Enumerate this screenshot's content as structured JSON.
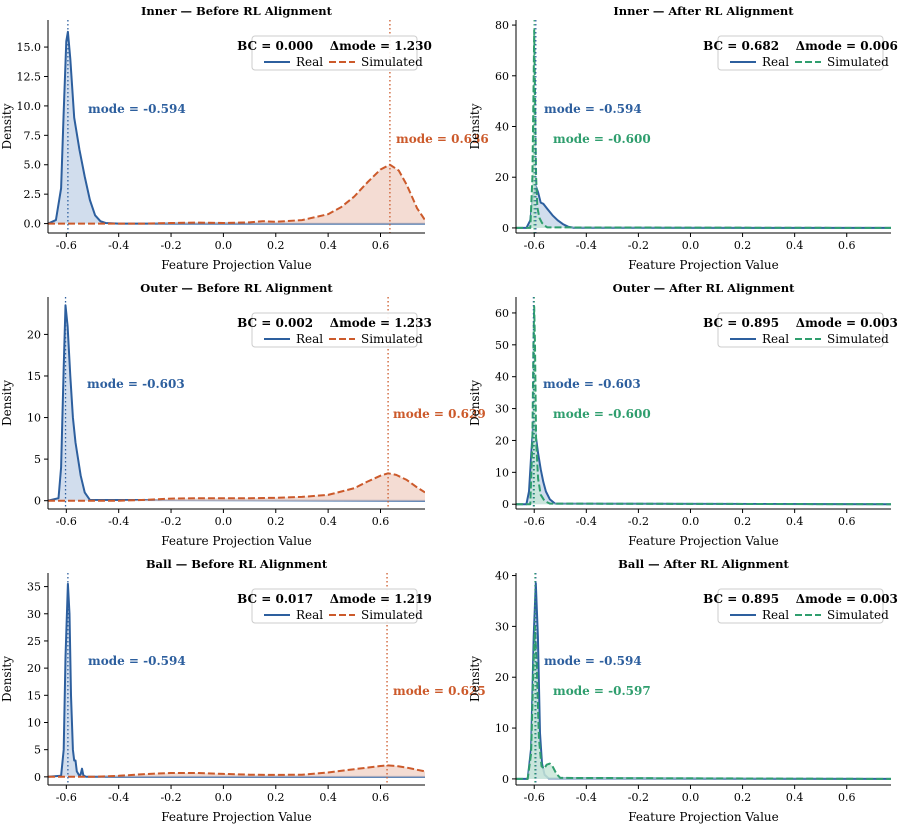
{
  "colors": {
    "real": "#2d5f9e",
    "real_fill": "#c9d7ea",
    "sim_before": "#cc5a2b",
    "sim_before_fill": "#f2d6cb",
    "sim_after": "#2f9e6e",
    "sim_after_fill": "#c8e6d8",
    "axis": "#000000"
  },
  "chart_data": [
    {
      "type": "area",
      "title": "Inner — Before RL Alignment",
      "xlabel": "Feature Projection Value",
      "ylabel": "Density",
      "xlim": [
        -0.67,
        0.77
      ],
      "ylim": [
        -0.8,
        17.3
      ],
      "yticks": [
        0.0,
        2.5,
        5.0,
        7.5,
        10.0,
        12.5,
        15.0
      ],
      "ytick_labels": [
        "0.0",
        "2.5",
        "5.0",
        "7.5",
        "10.0",
        "12.5",
        "15.0"
      ],
      "xticks": [
        -0.6,
        -0.4,
        -0.2,
        0.0,
        0.2,
        0.4,
        0.6
      ],
      "xtick_labels": [
        "-0.6",
        "-0.4",
        "-0.2",
        "0.0",
        "0.2",
        "0.4",
        "0.6"
      ],
      "legend": {
        "stats": "BC = 0.000    Δmode = 1.230",
        "labels": [
          "Real",
          "Simulated"
        ],
        "position": "top-right"
      },
      "modes": {
        "real": -0.594,
        "sim": 0.636,
        "real_label": "mode = -0.594",
        "sim_label": "mode = 0.636",
        "sim_style": "before"
      },
      "series": [
        {
          "name": "Real",
          "x": [
            -0.67,
            -0.64,
            -0.62,
            -0.61,
            -0.6,
            -0.594,
            -0.585,
            -0.57,
            -0.55,
            -0.53,
            -0.51,
            -0.49,
            -0.47,
            -0.45,
            -0.4,
            0.77
          ],
          "y": [
            0,
            0.3,
            3.0,
            9.5,
            15.5,
            16.3,
            14.0,
            9.0,
            6.3,
            4.0,
            2.0,
            0.7,
            0.2,
            0.05,
            0,
            0
          ]
        },
        {
          "name": "Simulated",
          "x": [
            -0.67,
            -0.3,
            -0.2,
            -0.1,
            0.0,
            0.1,
            0.15,
            0.2,
            0.3,
            0.4,
            0.45,
            0.5,
            0.55,
            0.6,
            0.636,
            0.67,
            0.7,
            0.72,
            0.74,
            0.77
          ],
          "y": [
            0,
            0,
            0.05,
            0.08,
            0.05,
            0.1,
            0.2,
            0.15,
            0.3,
            0.8,
            1.4,
            2.3,
            3.5,
            4.6,
            5.0,
            4.5,
            3.3,
            2.3,
            1.3,
            0.3
          ]
        }
      ]
    },
    {
      "type": "area",
      "title": "Inner — After RL Alignment",
      "xlabel": "Feature Projection Value",
      "ylabel": "Density",
      "xlim": [
        -0.67,
        0.77
      ],
      "ylim": [
        -2,
        82
      ],
      "yticks": [
        0,
        20,
        40,
        60,
        80
      ],
      "ytick_labels": [
        "0",
        "20",
        "40",
        "60",
        "80"
      ],
      "xticks": [
        -0.6,
        -0.4,
        -0.2,
        0.0,
        0.2,
        0.4,
        0.6
      ],
      "xtick_labels": [
        "-0.6",
        "-0.4",
        "-0.2",
        "0.0",
        "0.2",
        "0.4",
        "0.6"
      ],
      "legend": {
        "stats": "BC = 0.682    Δmode = 0.006",
        "labels": [
          "Real",
          "Simulated"
        ],
        "position": "top-right"
      },
      "modes": {
        "real": -0.594,
        "sim": -0.6,
        "real_label": "mode = -0.594",
        "sim_label": "mode = -0.600",
        "sim_style": "after"
      },
      "series": [
        {
          "name": "Real",
          "x": [
            -0.67,
            -0.63,
            -0.615,
            -0.605,
            -0.594,
            -0.585,
            -0.575,
            -0.565,
            -0.55,
            -0.53,
            -0.51,
            -0.49,
            -0.47,
            -0.45,
            0.77
          ],
          "y": [
            0,
            0,
            3,
            12,
            16.5,
            14,
            10,
            9.5,
            7.5,
            5,
            3,
            1.5,
            0.5,
            0.1,
            0
          ]
        },
        {
          "name": "Simulated",
          "x": [
            -0.67,
            -0.615,
            -0.607,
            -0.602,
            -0.6,
            -0.598,
            -0.593,
            -0.588,
            -0.58,
            -0.57,
            -0.56,
            -0.55,
            0.77
          ],
          "y": [
            0,
            0,
            20,
            60,
            78,
            60,
            20,
            8,
            4,
            2,
            1,
            0.2,
            0
          ]
        }
      ]
    },
    {
      "type": "area",
      "title": "Outer — Before RL Alignment",
      "xlabel": "Feature Projection Value",
      "ylabel": "Density",
      "xlim": [
        -0.67,
        0.77
      ],
      "ylim": [
        -1.0,
        24.5
      ],
      "yticks": [
        0,
        5,
        10,
        15,
        20
      ],
      "ytick_labels": [
        "0",
        "5",
        "10",
        "15",
        "20"
      ],
      "xticks": [
        -0.6,
        -0.4,
        -0.2,
        0.0,
        0.2,
        0.4,
        0.6
      ],
      "xtick_labels": [
        "-0.6",
        "-0.4",
        "-0.2",
        "0.0",
        "0.2",
        "0.4",
        "0.6"
      ],
      "legend": {
        "stats": "BC = 0.002    Δmode = 1.233",
        "labels": [
          "Real",
          "Simulated"
        ],
        "position": "top-right"
      },
      "modes": {
        "real": -0.603,
        "sim": 0.629,
        "real_label": "mode = -0.603",
        "sim_label": "mode = 0.629",
        "sim_style": "before"
      },
      "series": [
        {
          "name": "Real",
          "x": [
            -0.67,
            -0.63,
            -0.62,
            -0.61,
            -0.603,
            -0.595,
            -0.585,
            -0.575,
            -0.565,
            -0.555,
            -0.545,
            -0.53,
            -0.51,
            0.77
          ],
          "y": [
            0,
            0.3,
            4,
            16,
            23.5,
            21,
            15,
            10,
            7,
            5,
            3,
            1,
            0.1,
            0
          ]
        },
        {
          "name": "Simulated",
          "x": [
            -0.67,
            -0.4,
            -0.3,
            -0.2,
            -0.1,
            0.0,
            0.1,
            0.2,
            0.3,
            0.4,
            0.5,
            0.55,
            0.6,
            0.629,
            0.66,
            0.7,
            0.74,
            0.77
          ],
          "y": [
            0,
            0,
            0.1,
            0.25,
            0.3,
            0.3,
            0.3,
            0.35,
            0.45,
            0.7,
            1.5,
            2.3,
            3.0,
            3.3,
            3.1,
            2.5,
            1.6,
            1.0
          ]
        }
      ]
    },
    {
      "type": "area",
      "title": "Outer — After RL Alignment",
      "xlabel": "Feature Projection Value",
      "ylabel": "Density",
      "xlim": [
        -0.67,
        0.77
      ],
      "ylim": [
        -1.5,
        65
      ],
      "yticks": [
        0,
        10,
        20,
        30,
        40,
        50,
        60
      ],
      "ytick_labels": [
        "0",
        "10",
        "20",
        "30",
        "40",
        "50",
        "60"
      ],
      "xticks": [
        -0.6,
        -0.4,
        -0.2,
        0.0,
        0.2,
        0.4,
        0.6
      ],
      "xtick_labels": [
        "-0.6",
        "-0.4",
        "-0.2",
        "0.0",
        "0.2",
        "0.4",
        "0.6"
      ],
      "legend": {
        "stats": "BC = 0.895    Δmode = 0.003",
        "labels": [
          "Real",
          "Simulated"
        ],
        "position": "top-right"
      },
      "modes": {
        "real": -0.603,
        "sim": -0.6,
        "real_label": "mode = -0.603",
        "sim_label": "mode = -0.600",
        "sim_style": "after"
      },
      "series": [
        {
          "name": "Real",
          "x": [
            -0.67,
            -0.63,
            -0.62,
            -0.612,
            -0.603,
            -0.595,
            -0.585,
            -0.575,
            -0.565,
            -0.555,
            -0.54,
            -0.52,
            0.77
          ],
          "y": [
            0,
            0,
            4,
            15,
            26,
            22,
            16,
            11,
            7,
            4,
            1.5,
            0.2,
            0
          ]
        },
        {
          "name": "Simulated",
          "x": [
            -0.67,
            -0.615,
            -0.607,
            -0.603,
            -0.6,
            -0.597,
            -0.593,
            -0.585,
            -0.575,
            -0.56,
            -0.54,
            0.77
          ],
          "y": [
            0,
            0,
            20,
            50,
            62,
            50,
            20,
            8,
            3,
            1,
            0.2,
            0
          ]
        }
      ]
    },
    {
      "type": "area",
      "title": "Ball — Before RL Alignment",
      "xlabel": "Feature Projection Value",
      "ylabel": "Density",
      "xlim": [
        -0.67,
        0.77
      ],
      "ylim": [
        -1.5,
        37.5
      ],
      "yticks": [
        0,
        5,
        10,
        15,
        20,
        25,
        30,
        35
      ],
      "ytick_labels": [
        "0",
        "5",
        "10",
        "15",
        "20",
        "25",
        "30",
        "35"
      ],
      "xticks": [
        -0.6,
        -0.4,
        -0.2,
        0.0,
        0.2,
        0.4,
        0.6
      ],
      "xtick_labels": [
        "-0.6",
        "-0.4",
        "-0.2",
        "0.0",
        "0.2",
        "0.4",
        "0.6"
      ],
      "legend": {
        "stats": "BC = 0.017    Δmode = 1.219",
        "labels": [
          "Real",
          "Simulated"
        ],
        "position": "top-right"
      },
      "modes": {
        "real": -0.594,
        "sim": 0.625,
        "real_label": "mode = -0.594",
        "sim_label": "mode = 0.625",
        "sim_style": "before"
      },
      "series": [
        {
          "name": "Real",
          "x": [
            -0.67,
            -0.62,
            -0.61,
            -0.603,
            -0.594,
            -0.588,
            -0.582,
            -0.575,
            -0.57,
            -0.565,
            -0.56,
            -0.55,
            -0.545,
            -0.54,
            -0.535,
            -0.525,
            0.77
          ],
          "y": [
            0,
            0.2,
            5,
            22,
            35.5,
            30,
            15,
            5,
            3,
            3,
            1,
            0.2,
            0.5,
            1.5,
            0.3,
            0,
            0
          ]
        },
        {
          "name": "Simulated",
          "x": [
            -0.67,
            -0.5,
            -0.4,
            -0.3,
            -0.2,
            -0.1,
            0.0,
            0.1,
            0.2,
            0.3,
            0.4,
            0.5,
            0.6,
            0.625,
            0.66,
            0.7,
            0.74,
            0.77
          ],
          "y": [
            0,
            0,
            0.2,
            0.5,
            0.7,
            0.7,
            0.55,
            0.4,
            0.35,
            0.4,
            0.8,
            1.4,
            2.0,
            2.1,
            2.0,
            1.7,
            1.3,
            1.0
          ]
        }
      ]
    },
    {
      "type": "area",
      "title": "Ball — After RL Alignment",
      "xlabel": "Feature Projection Value",
      "ylabel": "Density",
      "xlim": [
        -0.67,
        0.77
      ],
      "ylim": [
        -1.2,
        40.5
      ],
      "yticks": [
        0,
        10,
        20,
        30,
        40
      ],
      "ytick_labels": [
        "0",
        "10",
        "20",
        "30",
        "40"
      ],
      "xticks": [
        -0.6,
        -0.4,
        -0.2,
        0.0,
        0.2,
        0.4,
        0.6
      ],
      "xtick_labels": [
        "-0.6",
        "-0.4",
        "-0.2",
        "0.0",
        "0.2",
        "0.4",
        "0.6"
      ],
      "legend": {
        "stats": "BC = 0.895    Δmode = 0.003",
        "labels": [
          "Real",
          "Simulated"
        ],
        "position": "top-right"
      },
      "modes": {
        "real": -0.594,
        "sim": -0.597,
        "real_label": "mode = -0.594",
        "sim_label": "mode = -0.597",
        "sim_style": "after"
      },
      "series": [
        {
          "name": "Real",
          "x": [
            -0.67,
            -0.625,
            -0.612,
            -0.602,
            -0.594,
            -0.586,
            -0.578,
            -0.57,
            -0.56,
            -0.545,
            0.77
          ],
          "y": [
            0,
            0,
            6,
            28,
            38.5,
            28,
            9,
            3,
            0.8,
            0.1,
            0
          ]
        },
        {
          "name": "Simulated",
          "x": [
            -0.67,
            -0.625,
            -0.612,
            -0.603,
            -0.597,
            -0.59,
            -0.582,
            -0.572,
            -0.562,
            -0.552,
            -0.54,
            -0.53,
            -0.515,
            -0.5,
            0.77
          ],
          "y": [
            0,
            0,
            5,
            22,
            30,
            22,
            8,
            2.5,
            2.0,
            2.8,
            3.0,
            2.5,
            1.0,
            0.2,
            0
          ]
        }
      ]
    }
  ]
}
